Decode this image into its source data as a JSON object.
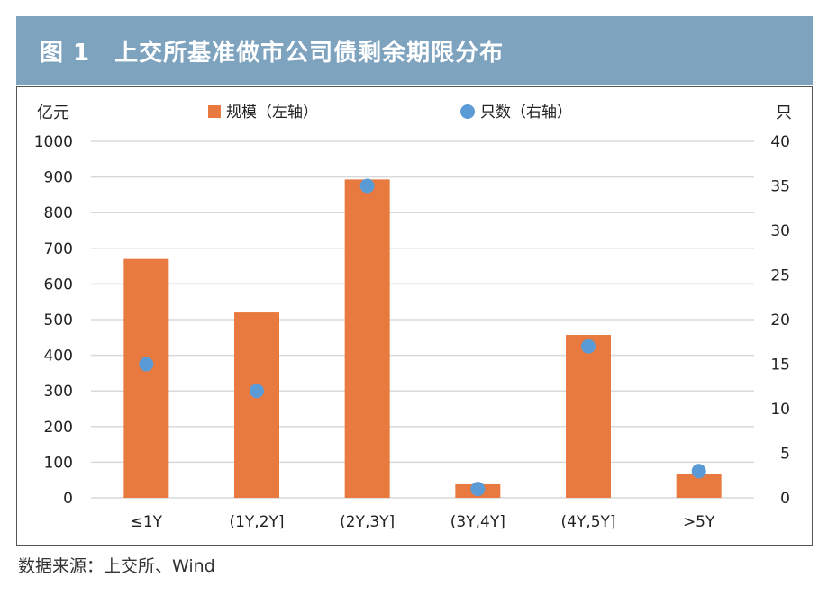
{
  "header": {
    "title": "图 1　上交所基准做市公司债剩余期限分布"
  },
  "source_note": "数据来源：上交所、Wind",
  "colors": {
    "header_bg": "#7ea3bf",
    "bar": "#e87a40",
    "dot": "#5b9bd5",
    "grid": "#d9d9d9"
  },
  "chart_data": {
    "type": "bar",
    "title": "",
    "categories": [
      "≤1Y",
      "(1Y,2Y]",
      "(2Y,3Y]",
      "(3Y,4Y]",
      "(4Y,5Y]",
      ">5Y"
    ],
    "y_left": {
      "unit_label": "亿元",
      "range": [
        0,
        1000
      ],
      "ticks": [
        "0",
        "100",
        "200",
        "300",
        "400",
        "500",
        "600",
        "700",
        "800",
        "900",
        "1000"
      ]
    },
    "y_right": {
      "unit_label": "只",
      "range": [
        0,
        40
      ],
      "ticks": [
        "0",
        "5",
        "10",
        "15",
        "20",
        "25",
        "30",
        "35",
        "40"
      ]
    },
    "series": [
      {
        "name": "规模（左轴）",
        "kind": "bar",
        "axis": "left",
        "values": [
          670,
          520,
          893,
          38,
          457,
          68
        ]
      },
      {
        "name": "只数（右轴）",
        "kind": "scatter",
        "axis": "right",
        "values": [
          15,
          12,
          35,
          1,
          17,
          3
        ]
      }
    ],
    "grid": true,
    "legend_position": "top"
  }
}
